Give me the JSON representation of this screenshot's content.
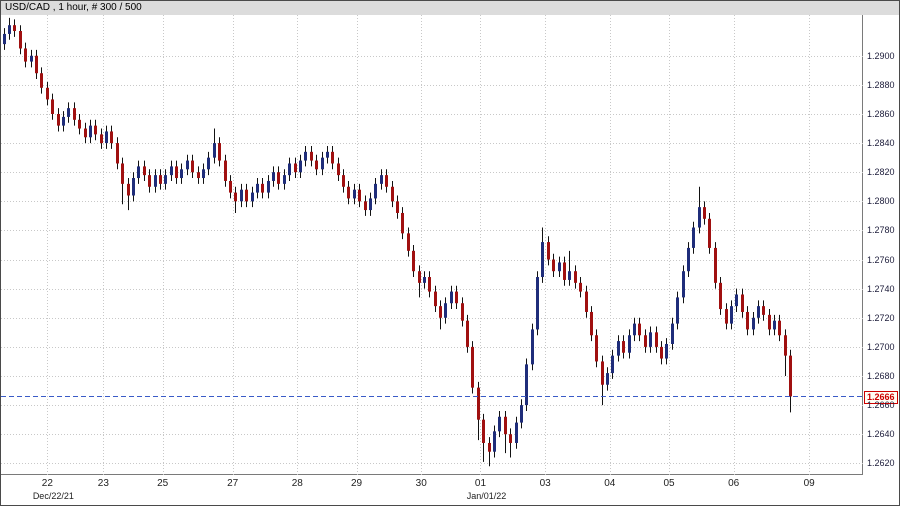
{
  "header": {
    "title": "USD/CAD , 1 hour, # 300 / 500"
  },
  "chart_data": {
    "type": "candlestick",
    "symbol": "USD/CAD",
    "timeframe": "1 hour",
    "bars_counter": "300 / 500",
    "y_axis": {
      "min": 1.2612,
      "max": 1.2928,
      "ticks": [
        {
          "value": 1.29,
          "label": "1.2900"
        },
        {
          "value": 1.288,
          "label": "1.2880"
        },
        {
          "value": 1.286,
          "label": "1.2860"
        },
        {
          "value": 1.284,
          "label": "1.2840"
        },
        {
          "value": 1.282,
          "label": "1.2820"
        },
        {
          "value": 1.28,
          "label": "1.2800"
        },
        {
          "value": 1.278,
          "label": "1.2780"
        },
        {
          "value": 1.276,
          "label": "1.2760"
        },
        {
          "value": 1.274,
          "label": "1.2740"
        },
        {
          "value": 1.272,
          "label": "1.2720"
        },
        {
          "value": 1.27,
          "label": "1.2700"
        },
        {
          "value": 1.268,
          "label": "1.2680"
        },
        {
          "value": 1.266,
          "label": "1.2660"
        },
        {
          "value": 1.264,
          "label": "1.2640"
        },
        {
          "value": 1.262,
          "label": "1.2620"
        }
      ]
    },
    "x_axis": {
      "total_slots": 160,
      "ticks": [
        {
          "label": "22",
          "slot": 8.6,
          "sub": "Dec/22/21"
        },
        {
          "label": "23",
          "slot": 19
        },
        {
          "label": "25",
          "slot": 30
        },
        {
          "label": "27",
          "slot": 43
        },
        {
          "label": "28",
          "slot": 55
        },
        {
          "label": "29",
          "slot": 66
        },
        {
          "label": "30",
          "slot": 78
        },
        {
          "label": "01",
          "slot": 89,
          "sub": "Jan/01/22"
        },
        {
          "label": "03",
          "slot": 101
        },
        {
          "label": "04",
          "slot": 113
        },
        {
          "label": "05",
          "slot": 124
        },
        {
          "label": "06",
          "slot": 136
        },
        {
          "label": "09",
          "slot": 150
        }
      ]
    },
    "first_open": 1.2908,
    "default_wick": 0.0004,
    "closes": [
      1.2915,
      1.2921,
      1.2917,
      1.2905,
      1.2896,
      1.29,
      1.2888,
      1.2878,
      1.287,
      1.286,
      1.2852,
      1.2858,
      1.2864,
      1.2856,
      1.285,
      1.2844,
      1.2852,
      1.2846,
      1.284,
      1.2848,
      1.284,
      1.2826,
      1.2812,
      1.2804,
      1.2816,
      1.2824,
      1.2818,
      1.281,
      1.2818,
      1.2812,
      1.2818,
      1.2824,
      1.2816,
      1.2822,
      1.2828,
      1.282,
      1.2816,
      1.2822,
      1.283,
      1.284,
      1.2828,
      1.2814,
      1.2806,
      1.28,
      1.2808,
      1.28,
      1.2806,
      1.2812,
      1.2806,
      1.2814,
      1.282,
      1.2812,
      1.2818,
      1.2826,
      1.282,
      1.2828,
      1.2834,
      1.2828,
      1.2822,
      1.283,
      1.2834,
      1.2826,
      1.2818,
      1.281,
      1.2802,
      1.2808,
      1.28,
      1.2794,
      1.2802,
      1.2812,
      1.2818,
      1.281,
      1.28,
      1.2792,
      1.2778,
      1.2766,
      1.2752,
      1.2744,
      1.2748,
      1.2738,
      1.2728,
      1.272,
      1.273,
      1.2738,
      1.273,
      1.2718,
      1.27,
      1.2672,
      1.265,
      1.2634,
      1.2628,
      1.2642,
      1.2652,
      1.264,
      1.2634,
      1.2648,
      1.266,
      1.2688,
      1.2712,
      1.2748,
      1.2772,
      1.276,
      1.2752,
      1.2758,
      1.2746,
      1.2752,
      1.2744,
      1.2738,
      1.2724,
      1.2708,
      1.269,
      1.2674,
      1.2682,
      1.2694,
      1.2704,
      1.2696,
      1.2708,
      1.2716,
      1.2708,
      1.27,
      1.271,
      1.27,
      1.2692,
      1.2702,
      1.2716,
      1.2734,
      1.2752,
      1.2768,
      1.2782,
      1.2796,
      1.2788,
      1.2768,
      1.2744,
      1.2726,
      1.2716,
      1.2728,
      1.2736,
      1.2724,
      1.2712,
      1.272,
      1.2728,
      1.2722,
      1.2712,
      1.2718,
      1.2708,
      1.2694,
      1.2666
    ],
    "wick_overrides": {
      "1": {
        "h": 1.2926
      },
      "22": {
        "l": 1.2798
      },
      "23": {
        "l": 1.2794
      },
      "39": {
        "h": 1.285
      },
      "43": {
        "l": 1.2792
      },
      "70": {
        "h": 1.2822
      },
      "77": {
        "l": 1.2734
      },
      "81": {
        "l": 1.2712
      },
      "88": {
        "l": 1.2636
      },
      "89": {
        "l": 1.2621
      },
      "90": {
        "l": 1.2618
      },
      "93": {
        "l": 1.2627
      },
      "94": {
        "l": 1.2624
      },
      "100": {
        "h": 1.2782
      },
      "105": {
        "h": 1.2766
      },
      "111": {
        "l": 1.266
      },
      "129": {
        "h": 1.281
      },
      "145": {
        "l": 1.268
      },
      "146": {
        "l": 1.2655
      }
    },
    "current_price": {
      "value": 1.2666,
      "label": "1.2666"
    },
    "colors": {
      "up_body": "#1f2d7a",
      "down_body": "#a01010",
      "wick": "#111111",
      "grid": "#c8c8c8",
      "dashed_line": "#3a5bc7",
      "price_tag": "#cc0000"
    }
  }
}
